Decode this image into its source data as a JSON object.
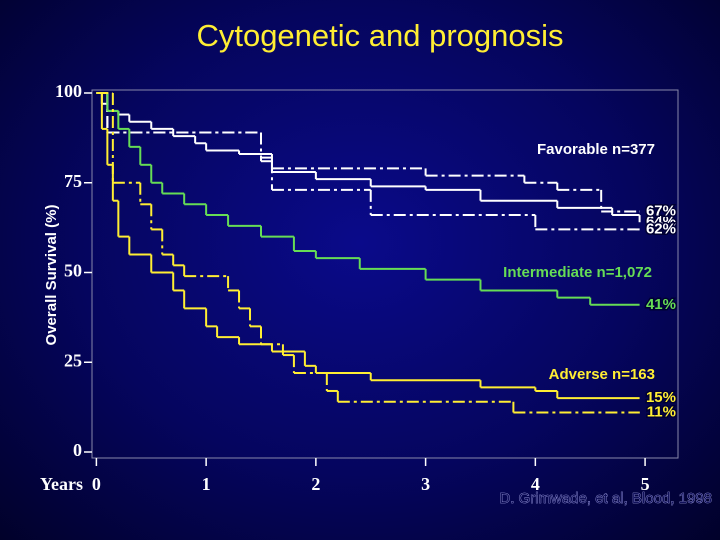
{
  "chart_data": {
    "type": "step",
    "title": "Cytogenetic and prognosis",
    "ylabel": "Overall Survival (%)",
    "xlabel": "Years",
    "xlim": [
      -0.04,
      5.3
    ],
    "ylim": [
      0,
      100
    ],
    "xticks": [
      0,
      1,
      2,
      3,
      4,
      5
    ],
    "yticks": [
      0,
      25,
      50,
      75,
      100
    ],
    "annotations": [
      {
        "text": "Favorable n=377",
        "color": "#ffffff"
      },
      {
        "text": "Intermediate n=1,072",
        "color": "#66dd55"
      },
      {
        "text": "Adverse n=163",
        "color": "#ffee33"
      }
    ],
    "source": "D. Grimwade, et al, Blood, 1998",
    "series": [
      {
        "color": "#ffffff",
        "dash": false,
        "x": [
          0,
          0.05,
          0.1,
          0.2,
          0.3,
          0.5,
          0.7,
          0.9,
          1.0,
          1.3,
          1.6,
          2.0,
          2.5,
          3.0,
          3.5,
          4.2,
          4.7,
          4.95
        ],
        "values": [
          100,
          97,
          95,
          94,
          92,
          90,
          88,
          86,
          84,
          83,
          78,
          76,
          74,
          73,
          70,
          68,
          66,
          64
        ],
        "value_labels": [
          null,
          null,
          null,
          null,
          null,
          null,
          null,
          null,
          null,
          null,
          null,
          null,
          null,
          null,
          null,
          null,
          null,
          "64%"
        ]
      },
      {
        "color": "#ffffff",
        "dash": true,
        "x": [
          0,
          0.1,
          1.5,
          1.6,
          3.0,
          3.9,
          4.2,
          4.6,
          4.95
        ],
        "values": [
          100,
          89,
          82,
          79,
          77,
          75,
          73,
          67,
          67
        ],
        "value_labels": [
          null,
          null,
          null,
          null,
          null,
          null,
          null,
          null,
          "67%"
        ]
      },
      {
        "color": "#ffffff",
        "dash": true,
        "x": [
          0,
          0.1,
          1.5,
          1.6,
          2.5,
          4.0,
          4.95
        ],
        "values": [
          100,
          89,
          81,
          73,
          66,
          62,
          62
        ],
        "value_labels": [
          null,
          null,
          null,
          null,
          null,
          null,
          "62%"
        ]
      },
      {
        "color": "#66dd55",
        "dash": false,
        "x": [
          0,
          0.1,
          0.2,
          0.3,
          0.4,
          0.5,
          0.6,
          0.8,
          1.0,
          1.2,
          1.5,
          1.8,
          2.0,
          2.4,
          3.0,
          3.5,
          4.2,
          4.5,
          4.95
        ],
        "values": [
          100,
          95,
          90,
          85,
          80,
          75,
          72,
          69,
          66,
          63,
          60,
          56,
          54,
          51,
          48,
          45,
          43,
          41,
          41
        ],
        "value_labels": [
          null,
          null,
          null,
          null,
          null,
          null,
          null,
          null,
          null,
          null,
          null,
          null,
          null,
          null,
          null,
          null,
          null,
          null,
          "41%"
        ]
      },
      {
        "color": "#ffee33",
        "dash": false,
        "x": [
          0,
          0.05,
          0.1,
          0.15,
          0.2,
          0.3,
          0.5,
          0.7,
          0.8,
          1.0,
          1.1,
          1.3,
          1.6,
          1.9,
          2.0,
          2.5,
          3.5,
          4.0,
          4.2,
          4.95
        ],
        "values": [
          100,
          90,
          80,
          70,
          60,
          55,
          50,
          45,
          40,
          35,
          32,
          30,
          28,
          24,
          22,
          20,
          18,
          17,
          15,
          15
        ],
        "value_labels": [
          null,
          null,
          null,
          null,
          null,
          null,
          null,
          null,
          null,
          null,
          null,
          null,
          null,
          null,
          null,
          null,
          null,
          null,
          null,
          "15%"
        ]
      },
      {
        "color": "#ffee33",
        "dash": true,
        "x": [
          0,
          0.15,
          0.4,
          0.5,
          0.6,
          0.7,
          0.8,
          1.2,
          1.3,
          1.4,
          1.5,
          1.7,
          1.8,
          2.1,
          2.2,
          3.8,
          4.95
        ],
        "values": [
          100,
          75,
          69,
          62,
          55,
          52,
          49,
          45,
          40,
          35,
          30,
          27,
          22,
          17,
          14,
          11,
          11
        ],
        "value_labels": [
          null,
          null,
          null,
          null,
          null,
          null,
          null,
          null,
          null,
          null,
          null,
          null,
          null,
          null,
          null,
          null,
          "11%"
        ]
      }
    ]
  }
}
